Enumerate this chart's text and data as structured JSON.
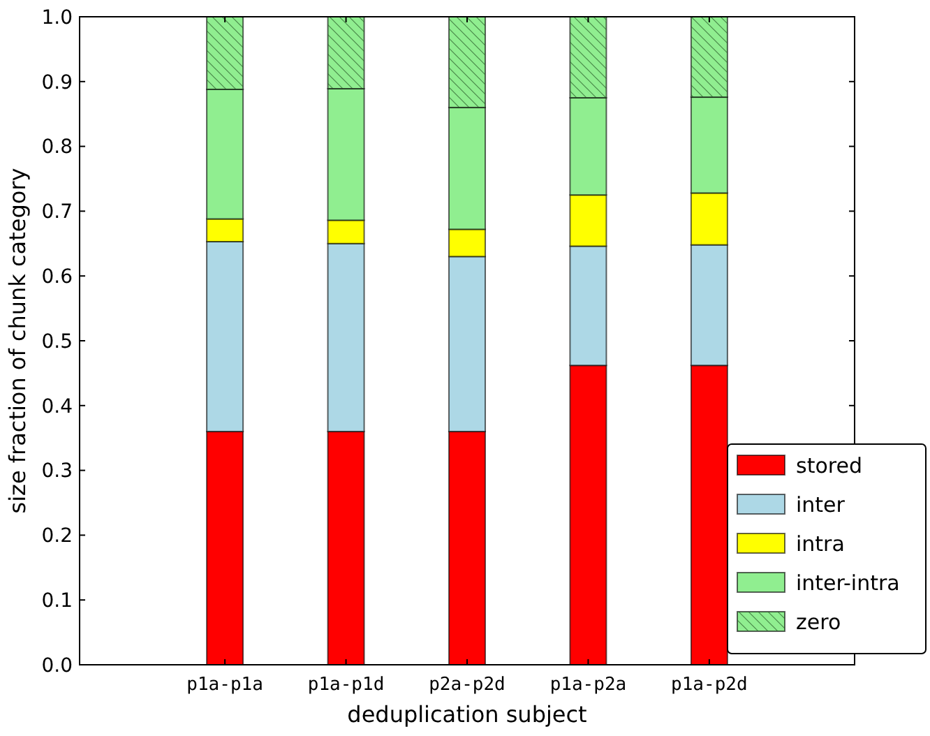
{
  "chart_data": {
    "type": "bar",
    "stacked": true,
    "xlabel": "deduplication subject",
    "ylabel": "size fraction of chunk category",
    "categories": [
      "p1a-p1a",
      "p1a-p1d",
      "p2a-p2d",
      "p1a-p2a",
      "p1a-p2d"
    ],
    "series": [
      {
        "name": "stored",
        "color": "#ff0000",
        "values": [
          0.36,
          0.36,
          0.36,
          0.462,
          0.462
        ]
      },
      {
        "name": "inter",
        "color": "#add8e6",
        "values": [
          0.293,
          0.29,
          0.27,
          0.184,
          0.186
        ]
      },
      {
        "name": "intra",
        "color": "#ffff00",
        "values": [
          0.035,
          0.036,
          0.042,
          0.079,
          0.08
        ]
      },
      {
        "name": "inter-intra",
        "color": "#90ee90",
        "values": [
          0.2,
          0.203,
          0.188,
          0.15,
          0.148
        ]
      },
      {
        "name": "zero",
        "color": "#90ee90",
        "values": [
          0.112,
          0.111,
          0.14,
          0.125,
          0.124
        ]
      }
    ],
    "ylim": [
      0,
      1
    ],
    "yticks": [
      {
        "value": 0,
        "label": "0.0"
      },
      {
        "value": 0.1,
        "label": "0.1"
      },
      {
        "value": 0.2,
        "label": "0.2"
      },
      {
        "value": 0.3,
        "label": "0.3"
      },
      {
        "value": 0.4,
        "label": "0.4"
      },
      {
        "value": 0.5,
        "label": "0.5"
      },
      {
        "value": 0.6,
        "label": "0.6"
      },
      {
        "value": 0.7,
        "label": "0.7"
      },
      {
        "value": 0.8,
        "label": "0.8"
      },
      {
        "value": 0.9,
        "label": "0.9"
      },
      {
        "value": 1,
        "label": "1.0"
      }
    ],
    "grid": false,
    "legend": "bottom right"
  }
}
